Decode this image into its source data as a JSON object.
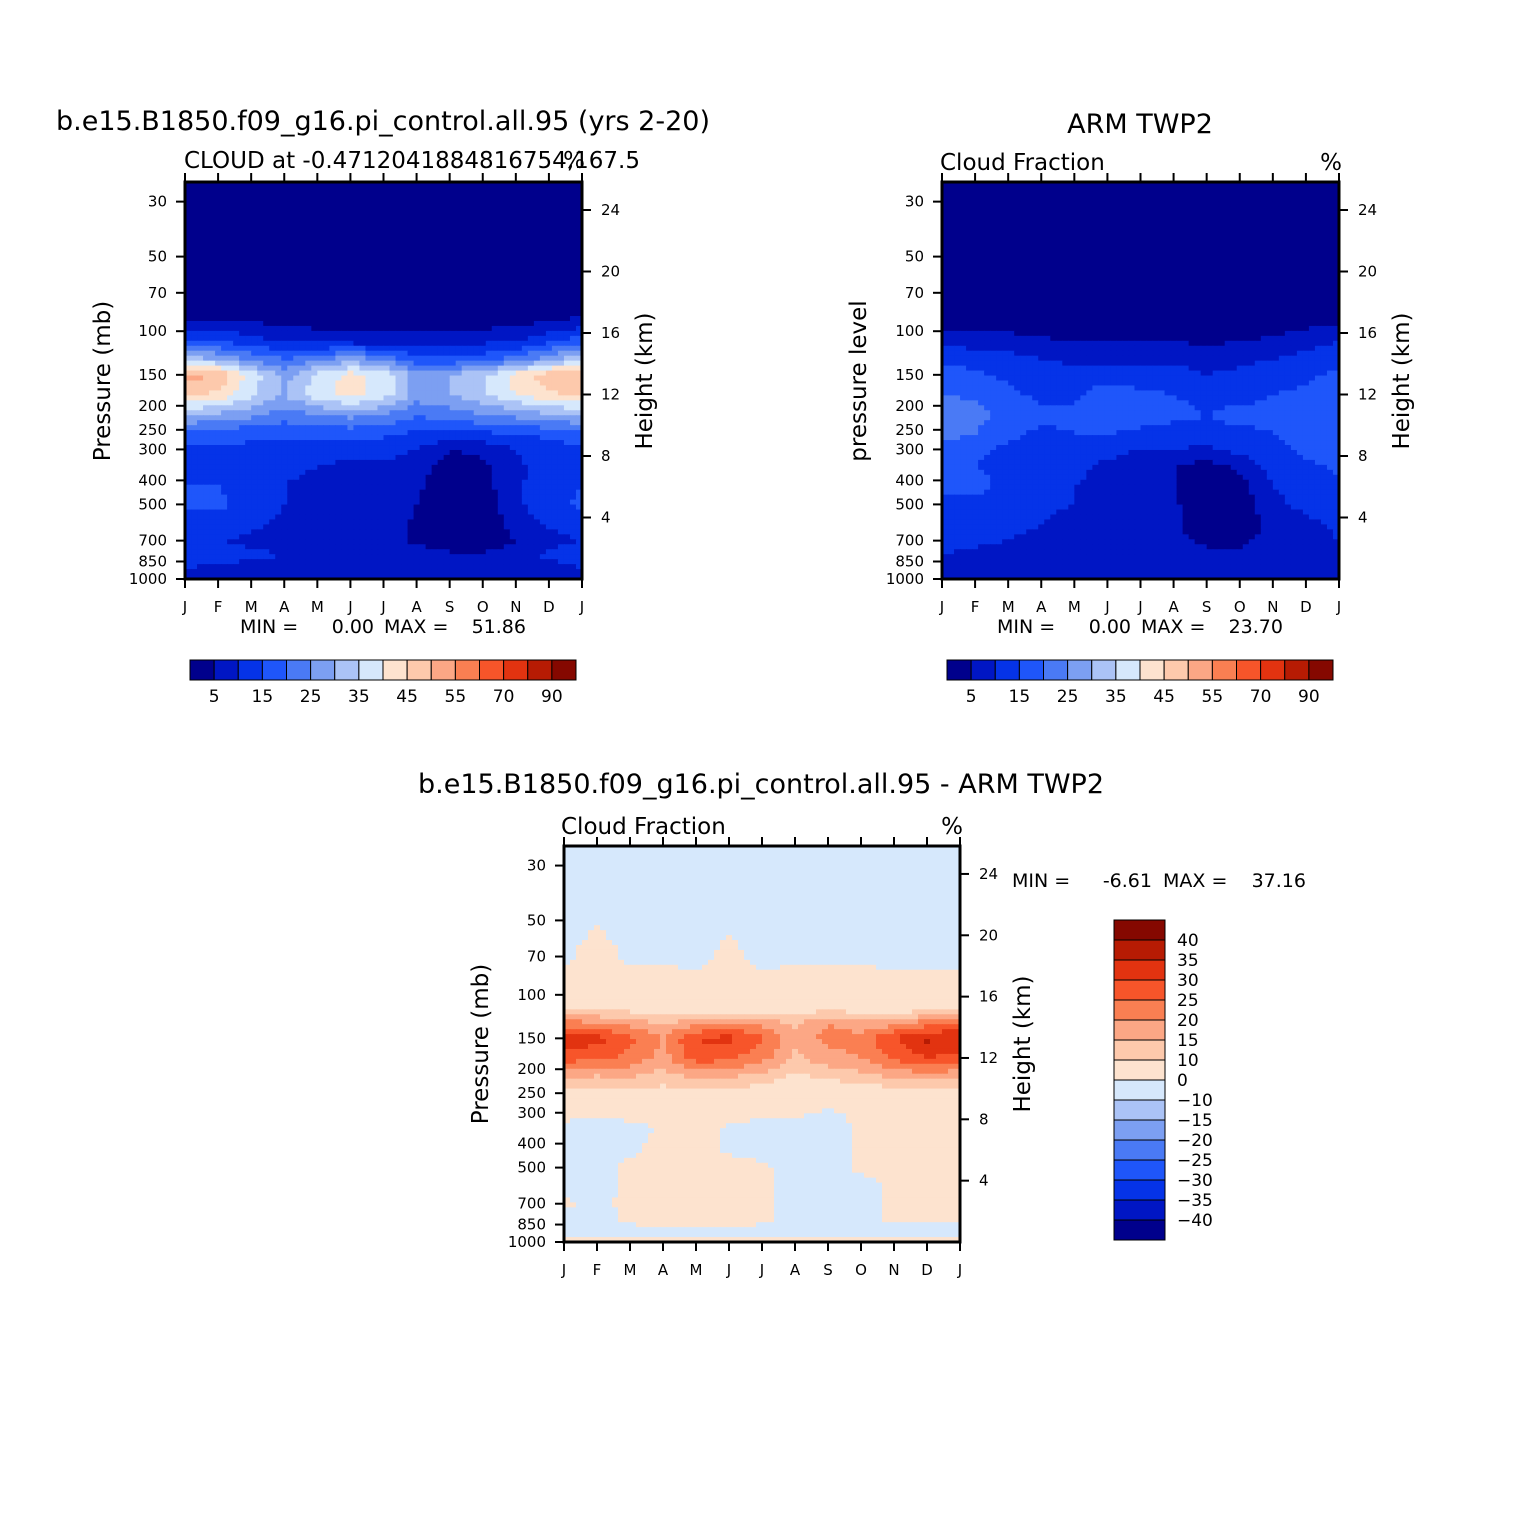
{
  "chart_data": [
    {
      "type": "heatmap",
      "title": "b.e15.B1850.f09_g16.pi_control.all.95 (yrs 2-20)",
      "subtitle_left": "CLOUD at -0.4712041884816754,167.5",
      "units": "%",
      "xlabel": "",
      "ylabel": "Pressure (mb)",
      "ylabel_right": "Height (km)",
      "x_ticklabels": [
        "J",
        "F",
        "M",
        "A",
        "M",
        "J",
        "J",
        "A",
        "S",
        "O",
        "N",
        "D",
        "J"
      ],
      "y_ticks": [
        30,
        50,
        70,
        100,
        150,
        200,
        250,
        300,
        400,
        500,
        700,
        850,
        1000
      ],
      "y_right_ticks": [
        24,
        20,
        16,
        12,
        8,
        4
      ],
      "ylim": [
        1000,
        25
      ],
      "y_log_scale": true,
      "stats": {
        "min_label": "MIN =",
        "min": "0.00",
        "max_label": "MAX =",
        "max": "51.86"
      },
      "colorbar": {
        "orientation": "horizontal",
        "labels": [
          "5",
          "15",
          "25",
          "35",
          "45",
          "55",
          "70",
          "90"
        ],
        "colors": [
          "#00008c",
          "#0016c4",
          "#0533e8",
          "#1f56fa",
          "#4a7af5",
          "#7c9ff2",
          "#abc3f6",
          "#d6e8fc",
          "#fde3cf",
          "#fdc9ac",
          "#fca785",
          "#fa7f52",
          "#f7552a",
          "#e23310",
          "#b71b03",
          "#850800"
        ]
      },
      "field_description": "Deep blue (~0-5%) above 100 mb; bright layer 120-240 mb peaking ~45-52% in Jan/Dec and ~40% in May-Jul; 10-20% between 300-700 mb with near-zero core Aug-Oct 300-800 mb",
      "field": {
        "pressure": [
          25,
          40,
          70,
          90,
          110,
          130,
          150,
          180,
          220,
          260,
          300,
          350,
          420,
          500,
          600,
          700,
          800,
          900,
          1000
        ],
        "month_index": [
          0,
          1,
          2,
          3,
          4,
          5,
          6,
          7,
          8,
          9,
          10,
          11,
          12
        ],
        "values": [
          [
            0,
            0,
            0,
            0,
            0,
            0,
            0,
            0,
            0,
            0,
            0,
            0,
            0
          ],
          [
            0,
            0,
            0,
            0,
            0,
            0,
            0,
            0,
            0,
            0,
            0,
            0,
            0
          ],
          [
            1,
            1,
            1,
            1,
            0,
            0,
            0,
            0,
            0,
            0,
            0,
            1,
            1
          ],
          [
            5,
            5,
            4,
            3,
            2,
            2,
            2,
            2,
            2,
            2,
            3,
            4,
            6
          ],
          [
            16,
            15,
            12,
            10,
            9,
            8,
            8,
            8,
            8,
            9,
            10,
            14,
            18
          ],
          [
            32,
            30,
            24,
            20,
            24,
            28,
            24,
            16,
            16,
            18,
            22,
            28,
            34
          ],
          [
            52,
            50,
            38,
            28,
            36,
            42,
            38,
            28,
            30,
            34,
            42,
            48,
            51
          ],
          [
            46,
            44,
            36,
            30,
            38,
            42,
            38,
            28,
            30,
            34,
            40,
            44,
            46
          ],
          [
            30,
            28,
            26,
            22,
            24,
            26,
            24,
            20,
            22,
            24,
            26,
            28,
            30
          ],
          [
            18,
            17,
            16,
            16,
            16,
            17,
            16,
            14,
            13,
            14,
            15,
            16,
            18
          ],
          [
            14,
            14,
            14,
            13,
            12,
            12,
            12,
            10,
            5,
            6,
            10,
            13,
            14
          ],
          [
            14,
            14,
            13,
            12,
            10,
            9,
            9,
            7,
            3,
            4,
            9,
            12,
            14
          ],
          [
            15,
            15,
            12,
            10,
            8,
            8,
            8,
            6,
            2,
            3,
            9,
            13,
            15
          ],
          [
            16,
            16,
            13,
            10,
            9,
            9,
            8,
            5,
            1,
            2,
            9,
            13,
            16
          ],
          [
            13,
            13,
            11,
            9,
            8,
            8,
            8,
            4,
            1,
            1,
            7,
            11,
            13
          ],
          [
            10,
            10,
            9,
            8,
            8,
            7,
            7,
            4,
            1,
            1,
            5,
            8,
            10
          ],
          [
            14,
            13,
            11,
            10,
            9,
            9,
            9,
            8,
            6,
            6,
            8,
            11,
            14
          ],
          [
            10,
            9,
            8,
            8,
            7,
            7,
            7,
            7,
            6,
            6,
            7,
            8,
            10
          ],
          [
            8,
            7,
            6,
            6,
            6,
            6,
            6,
            6,
            6,
            6,
            6,
            7,
            8
          ]
        ]
      }
    },
    {
      "type": "heatmap",
      "title": "ARM TWP2",
      "subtitle_left": "Cloud Fraction",
      "units": "%",
      "xlabel": "",
      "ylabel": "pressure level",
      "ylabel_right": "Height (km)",
      "x_ticklabels": [
        "J",
        "F",
        "M",
        "A",
        "M",
        "J",
        "J",
        "A",
        "S",
        "O",
        "N",
        "D",
        "J"
      ],
      "y_ticks": [
        30,
        50,
        70,
        100,
        150,
        200,
        250,
        300,
        400,
        500,
        700,
        850,
        1000
      ],
      "y_right_ticks": [
        24,
        20,
        16,
        12,
        8,
        4
      ],
      "ylim": [
        1000,
        25
      ],
      "y_log_scale": true,
      "stats": {
        "min_label": "MIN =",
        "min": "0.00",
        "max_label": "MAX =",
        "max": "23.70"
      },
      "colorbar": {
        "orientation": "horizontal",
        "labels": [
          "5",
          "15",
          "25",
          "35",
          "45",
          "55",
          "70",
          "90"
        ],
        "colors": [
          "#00008c",
          "#0016c4",
          "#0533e8",
          "#1f56fa",
          "#4a7af5",
          "#7c9ff2",
          "#abc3f6",
          "#d6e8fc",
          "#fde3cf",
          "#fdc9ac",
          "#fca785",
          "#fa7f52",
          "#f7552a",
          "#e23310",
          "#b71b03",
          "#850800"
        ]
      },
      "field_description": "Deep blue above ~100 mb; 10-24% between 130-550 mb with max ~24% near Jan 200 mb; lower values (0-10%) below 400 mb, minimum Aug-Oct",
      "field": {
        "pressure": [
          25,
          40,
          70,
          90,
          110,
          130,
          150,
          180,
          220,
          260,
          300,
          350,
          420,
          500,
          600,
          700,
          800,
          900,
          1000
        ],
        "month_index": [
          0,
          1,
          2,
          3,
          4,
          5,
          6,
          7,
          8,
          9,
          10,
          11,
          12
        ],
        "values": [
          [
            0,
            0,
            0,
            0,
            0,
            0,
            0,
            0,
            0,
            0,
            0,
            0,
            0
          ],
          [
            0,
            0,
            0,
            0,
            0,
            0,
            0,
            0,
            0,
            0,
            0,
            0,
            0
          ],
          [
            0,
            0,
            0,
            0,
            0,
            0,
            0,
            0,
            0,
            0,
            0,
            0,
            0
          ],
          [
            3,
            2,
            2,
            1,
            1,
            1,
            1,
            1,
            1,
            1,
            2,
            3,
            4
          ],
          [
            8,
            8,
            7,
            6,
            5,
            5,
            5,
            5,
            4,
            5,
            6,
            8,
            10
          ],
          [
            14,
            13,
            12,
            10,
            9,
            9,
            9,
            9,
            8,
            9,
            10,
            12,
            14
          ],
          [
            17,
            16,
            14,
            12,
            12,
            12,
            12,
            12,
            10,
            11,
            12,
            14,
            16
          ],
          [
            20,
            19,
            16,
            14,
            14,
            18,
            16,
            15,
            14,
            14,
            15,
            16,
            19
          ],
          [
            24,
            22,
            18,
            16,
            16,
            18,
            17,
            16,
            15,
            16,
            16,
            17,
            20
          ],
          [
            22,
            20,
            16,
            14,
            15,
            15,
            14,
            13,
            14,
            14,
            15,
            16,
            19
          ],
          [
            18,
            16,
            14,
            13,
            13,
            12,
            10,
            10,
            9,
            12,
            14,
            16,
            18
          ],
          [
            16,
            15,
            14,
            12,
            11,
            9,
            6,
            5,
            3,
            6,
            12,
            14,
            16
          ],
          [
            16,
            16,
            14,
            12,
            10,
            9,
            6,
            5,
            1,
            3,
            10,
            12,
            14
          ],
          [
            14,
            14,
            13,
            11,
            10,
            9,
            7,
            6,
            1,
            2,
            9,
            11,
            13
          ],
          [
            12,
            12,
            11,
            10,
            8,
            6,
            7,
            6,
            1,
            1,
            7,
            9,
            11
          ],
          [
            11,
            11,
            10,
            9,
            8,
            8,
            8,
            7,
            4,
            4,
            7,
            8,
            10
          ],
          [
            10,
            9,
            8,
            8,
            8,
            8,
            8,
            7,
            6,
            6,
            7,
            8,
            9
          ],
          [
            8,
            7,
            7,
            7,
            7,
            7,
            7,
            7,
            7,
            6,
            7,
            7,
            8
          ],
          [
            6,
            6,
            6,
            6,
            6,
            6,
            6,
            6,
            6,
            6,
            6,
            6,
            6
          ]
        ]
      }
    },
    {
      "type": "heatmap",
      "title": "b.e15.B1850.f09_g16.pi_control.all.95 - ARM TWP2",
      "subtitle_left": "Cloud Fraction",
      "units": "%",
      "xlabel": "",
      "ylabel": "Pressure (mb)",
      "ylabel_right": "Height (km)",
      "x_ticklabels": [
        "J",
        "F",
        "M",
        "A",
        "M",
        "J",
        "J",
        "A",
        "S",
        "O",
        "N",
        "D",
        "J"
      ],
      "y_ticks": [
        30,
        50,
        70,
        100,
        150,
        200,
        250,
        300,
        400,
        500,
        700,
        850,
        1000
      ],
      "y_right_ticks": [
        24,
        20,
        16,
        12,
        8,
        4
      ],
      "ylim": [
        1000,
        25
      ],
      "y_log_scale": true,
      "stats": {
        "min_label": "MIN =",
        "min": "-6.61",
        "max_label": "MAX =",
        "max": "37.16"
      },
      "colorbar": {
        "orientation": "vertical",
        "labels": [
          "40",
          "35",
          "30",
          "25",
          "20",
          "15",
          "10",
          "0",
          "-10",
          "-15",
          "-20",
          "-25",
          "-30",
          "-35",
          "-40"
        ],
        "colors": [
          "#850800",
          "#b71b03",
          "#e23310",
          "#f7552a",
          "#fa7f52",
          "#fca785",
          "#fdc9ac",
          "#fde3cf",
          "#d6e8fc",
          "#abc3f6",
          "#7c9ff2",
          "#4a7af5",
          "#1f56fa",
          "#0533e8",
          "#0016c4",
          "#00008c"
        ]
      },
      "field_description": "Difference: light blue (-10 to 0) above ~90 mb and in lower troposphere Jan-Mar and Jun-Sep; positive 0-10 band 90-300 mb; strong positive 20-37 band at 130-200 mb peaking near 150 mb in Jan-Feb and Dec",
      "field": {
        "pressure": [
          25,
          40,
          70,
          90,
          110,
          130,
          150,
          180,
          220,
          260,
          300,
          350,
          420,
          500,
          600,
          700,
          800,
          900,
          1000
        ],
        "month_index": [
          0,
          1,
          2,
          3,
          4,
          5,
          6,
          7,
          8,
          9,
          10,
          11,
          12
        ],
        "values": [
          [
            -2,
            -2,
            -2,
            -2,
            -2,
            -2,
            -2,
            -2,
            -2,
            -2,
            -2,
            -2,
            -2
          ],
          [
            -2,
            -2,
            -2,
            -2,
            -2,
            -2,
            -2,
            -2,
            -2,
            -2,
            -2,
            -2,
            -2
          ],
          [
            -1,
            2,
            -1,
            -1,
            -1,
            1,
            -1,
            -1,
            -1,
            -1,
            -1,
            -1,
            -1
          ],
          [
            2,
            3,
            2,
            2,
            1,
            1,
            1,
            2,
            2,
            2,
            1,
            1,
            1
          ],
          [
            6,
            6,
            5,
            4,
            4,
            3,
            4,
            5,
            6,
            5,
            4,
            4,
            5
          ],
          [
            22,
            20,
            18,
            14,
            18,
            20,
            18,
            14,
            20,
            16,
            18,
            22,
            24
          ],
          [
            34,
            32,
            26,
            20,
            30,
            32,
            26,
            16,
            22,
            22,
            30,
            36,
            35
          ],
          [
            28,
            26,
            24,
            18,
            28,
            26,
            22,
            14,
            18,
            20,
            26,
            30,
            28
          ],
          [
            14,
            13,
            14,
            12,
            14,
            14,
            12,
            8,
            10,
            12,
            14,
            16,
            14
          ],
          [
            5,
            5,
            6,
            6,
            6,
            6,
            5,
            4,
            3,
            4,
            5,
            5,
            6
          ],
          [
            2,
            1,
            2,
            2,
            2,
            2,
            1,
            1,
            -1,
            1,
            2,
            2,
            2
          ],
          [
            -2,
            -2,
            -2,
            1,
            2,
            -1,
            -2,
            -2,
            -2,
            1,
            1,
            1,
            2
          ],
          [
            -2,
            -2,
            -1,
            2,
            3,
            -1,
            -2,
            -2,
            -2,
            1,
            2,
            2,
            2
          ],
          [
            -1,
            -2,
            1,
            3,
            3,
            2,
            1,
            -2,
            -2,
            1,
            1,
            2,
            2
          ],
          [
            -1,
            -2,
            1,
            3,
            3,
            2,
            1,
            -2,
            -2,
            -2,
            1,
            2,
            2
          ],
          [
            1,
            -2,
            2,
            3,
            3,
            3,
            1,
            -2,
            -2,
            -2,
            1,
            2,
            2
          ],
          [
            -1,
            -2,
            1,
            2,
            2,
            2,
            1,
            -2,
            -2,
            -2,
            1,
            1,
            1
          ],
          [
            -1,
            -1,
            -1,
            -1,
            -1,
            -1,
            -1,
            -1,
            -1,
            -1,
            -1,
            -1,
            -1
          ],
          [
            1,
            1,
            1,
            1,
            1,
            1,
            1,
            1,
            1,
            1,
            1,
            1,
            1
          ]
        ]
      }
    }
  ]
}
